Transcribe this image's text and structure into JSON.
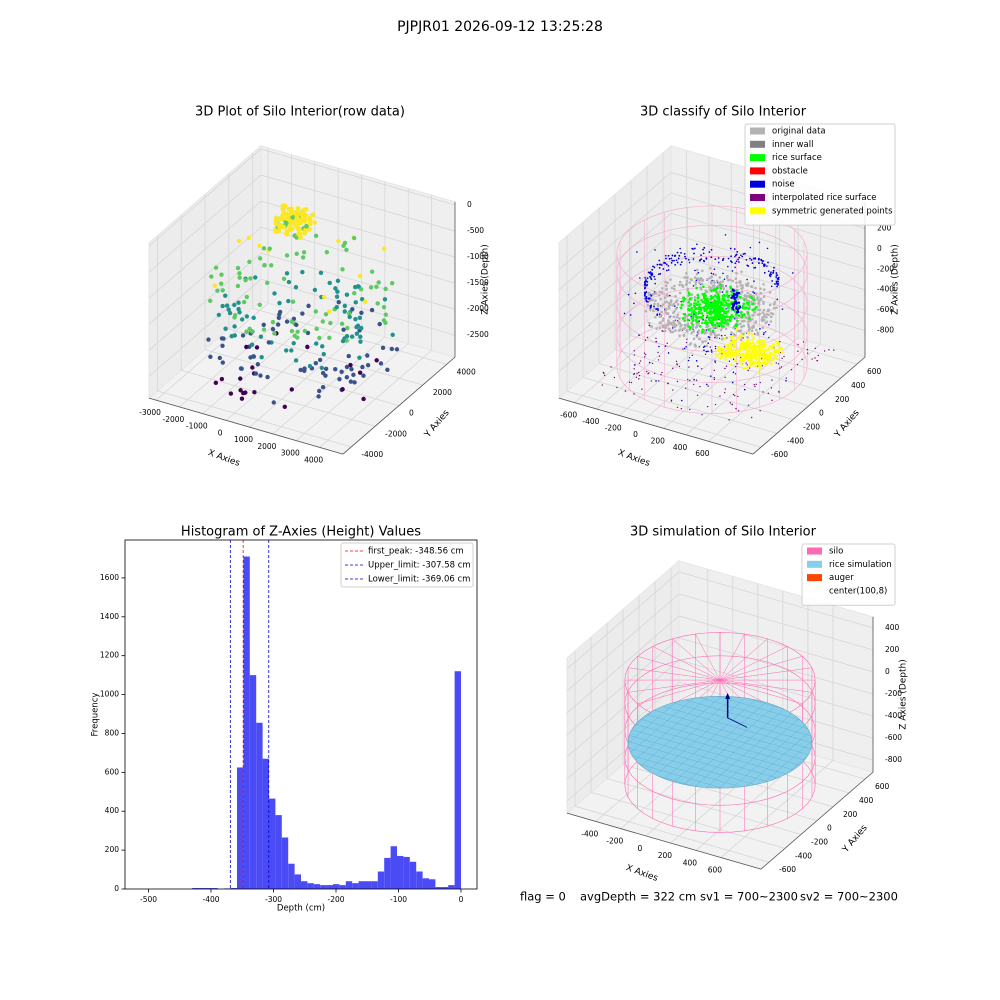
{
  "title": "PJPJR01 2026-09-12 13:25:28",
  "chart_data": [
    {
      "type": "scatter3d",
      "title": "3D Plot of Silo Interior(row data)",
      "x_label": "X Axies",
      "y_label": "Y Axies",
      "z_label": "Z Axies (Depth)",
      "xlim": [
        -3300,
        5000
      ],
      "ylim": [
        -4700,
        4700
      ],
      "zlim": [
        -2920,
        60
      ],
      "xticks": [
        -3000,
        -2000,
        -1000,
        0,
        1000,
        2000,
        3000,
        4000
      ],
      "yticks": [
        -4000,
        -2000,
        0,
        2000,
        4000
      ],
      "zticks": [
        0,
        -500,
        -1000,
        -1500,
        -2000,
        -2500
      ]
    },
    {
      "type": "scatter3d",
      "title": "3D classify of Silo Interior",
      "x_label": "X Axies",
      "y_label": "Y Axies",
      "z_label": "Z Axies (Depth)",
      "xlim": [
        -740,
        1000
      ],
      "ylim": [
        -700,
        700
      ],
      "zlim": [
        -1060,
        460
      ],
      "xticks": [
        -600,
        -400,
        -200,
        0,
        200,
        400,
        600
      ],
      "yticks": [
        -600,
        -400,
        -200,
        0,
        200,
        400,
        600
      ],
      "zticks": [
        200,
        0,
        -200,
        -400,
        -600,
        -800
      ],
      "legend": [
        {
          "name": "original data",
          "color": "#b3b3b3"
        },
        {
          "name": "inner wall",
          "color": "#808080"
        },
        {
          "name": "rice surface",
          "color": "#00ff00"
        },
        {
          "name": "obstacle",
          "color": "#ff0000"
        },
        {
          "name": "noise",
          "color": "#0000dd"
        },
        {
          "name": "interpolated rice surface",
          "color": "#800080"
        },
        {
          "name": "symmetric generated points",
          "color": "#ffff00"
        }
      ]
    },
    {
      "type": "histogram",
      "title": "Histogram of Z-Axies (Height) Values",
      "x_label": "Depth (cm)",
      "y_label": "Frequency",
      "color": "#4b4bf5",
      "bins": [
        -512,
        -501.76,
        -491.52,
        -481.28,
        -471.04,
        -460.8,
        -450.56,
        -440.32,
        -430.08,
        -419.84,
        -409.6,
        -399.36,
        -389.12,
        -378.88,
        -368.64,
        -358.4,
        -348.16,
        -337.92,
        -327.68,
        -317.44,
        -307.2,
        -296.96,
        -286.72,
        -276.48,
        -266.24,
        -256,
        -245.76,
        -235.52,
        -225.28,
        -215.04,
        -204.8,
        -194.56,
        -184.32,
        -174.08,
        -163.84,
        -153.6,
        -143.36,
        -133.12,
        -122.88,
        -112.64,
        -102.4,
        -92.16,
        -81.92,
        -71.68,
        -61.44,
        -51.2,
        -40.96,
        -30.72,
        -20.48,
        -10.24,
        0
      ],
      "values": [
        0,
        0,
        0,
        0,
        0,
        0,
        0,
        0,
        5,
        5,
        5,
        5,
        0,
        3,
        5,
        625,
        1710,
        1100,
        855,
        670,
        465,
        380,
        265,
        130,
        75,
        40,
        30,
        25,
        20,
        20,
        25,
        20,
        40,
        30,
        40,
        40,
        40,
        90,
        160,
        220,
        170,
        165,
        140,
        90,
        55,
        50,
        10,
        10,
        20,
        1120
      ],
      "xlim": [
        -537.6,
        25.6
      ],
      "ylim": [
        0,
        1795
      ],
      "xticks": [
        -500,
        -400,
        -300,
        -200,
        -100,
        0
      ],
      "yticks": [
        0,
        200,
        400,
        600,
        800,
        1000,
        1200,
        1400,
        1600
      ],
      "lines": [
        {
          "name": "first_peak: -348.56 cm",
          "value": -348.56,
          "color": "#ff0000"
        },
        {
          "name": "Upper_limit: -307.58 cm",
          "value": -307.58,
          "color": "#0000cc"
        },
        {
          "name": "Lower_limit: -369.06 cm",
          "value": -369.06,
          "color": "#0000cc"
        }
      ]
    },
    {
      "type": "scatter3d",
      "title": "3D simulation of Silo Interior",
      "x_label": "X Axies",
      "y_label": "Y Axies",
      "z_label": "Z Axies (Depth)",
      "xlim": [
        -630,
        920
      ],
      "ylim": [
        -700,
        700
      ],
      "zlim": [
        -910,
        500
      ],
      "xticks": [
        -400,
        -200,
        0,
        200,
        400,
        600
      ],
      "yticks": [
        -600,
        -400,
        -200,
        0,
        200,
        400,
        600
      ],
      "zticks": [
        400,
        200,
        0,
        -200,
        -400,
        -600,
        -800
      ],
      "legend": [
        {
          "name": "silo",
          "color": "#ff69b4"
        },
        {
          "name": "rice simulation",
          "color": "#87ceeb"
        },
        {
          "name": "auger",
          "color": "#ff4500"
        },
        {
          "name": "center(100,8)",
          "color": "#ffffff"
        }
      ]
    }
  ],
  "status": [
    "flag = 0",
    "avgDepth = 322 cm",
    "sv1 = 700~2300",
    "sv2 = 700~2300"
  ]
}
